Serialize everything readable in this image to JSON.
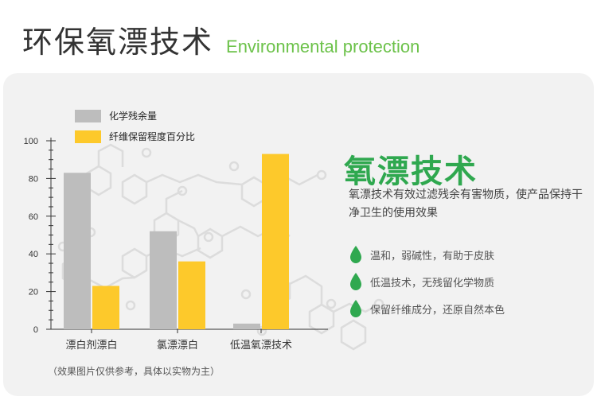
{
  "header": {
    "title_cn": "环保氧漂技术",
    "title_en": "Environmental protection"
  },
  "colors": {
    "accent_green": "#2fa84f",
    "title_en_green": "#6cc24a",
    "bar_gray": "#bdbdbd",
    "bar_yellow": "#fdc92b",
    "panel_bg": "#f2f2f2"
  },
  "chart_data": {
    "type": "bar",
    "categories": [
      "漂白剂漂白",
      "氯漂漂白",
      "低温氧漂技术"
    ],
    "series": [
      {
        "name": "化学残余量",
        "values": [
          83,
          52,
          3
        ],
        "color": "#bdbdbd"
      },
      {
        "name": "纤维保留程度百分比",
        "values": [
          23,
          36,
          93
        ],
        "color": "#fdc92b"
      }
    ],
    "ylim": [
      0,
      100
    ],
    "yticks": [
      0,
      20,
      40,
      60,
      80,
      100
    ],
    "legend_position": "top-left",
    "grid": false
  },
  "right_panel": {
    "title": "氧漂技术",
    "description": "氧漂技术有效过滤残余有害物质，使产品保持干净卫生的使用效果",
    "icon": "water-drop-icon",
    "features": [
      "温和，弱碱性，有助于皮肤",
      "低温技术，无残留化学物质",
      "保留纤维成分，还原自然本色"
    ]
  },
  "note": "（效果图片仅供参考，具体以实物为主）"
}
